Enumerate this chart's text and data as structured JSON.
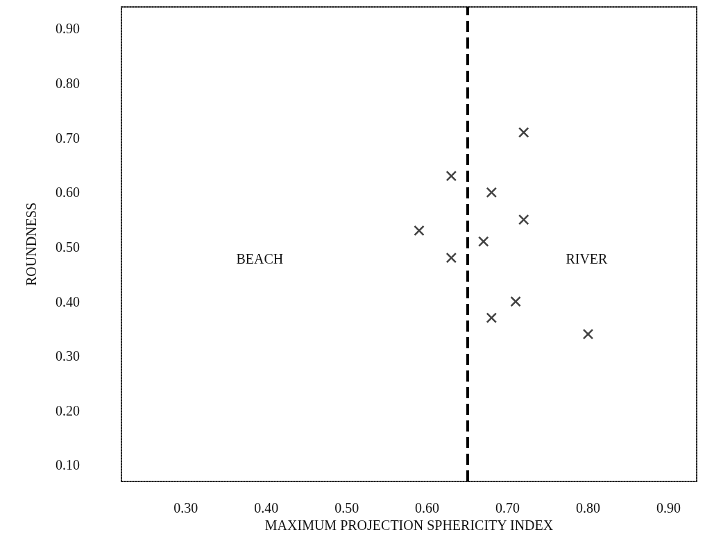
{
  "chart_data": {
    "type": "scatter",
    "xlabel": "MAXIMUM PROJECTION SPHERICITY INDEX",
    "ylabel": "ROUNDNESS",
    "x": [
      0.72,
      0.63,
      0.68,
      0.59,
      0.72,
      0.67,
      0.63,
      0.71,
      0.68,
      0.8
    ],
    "values": [
      0.71,
      0.63,
      0.6,
      0.53,
      0.55,
      0.51,
      0.48,
      0.4,
      0.37,
      0.34
    ],
    "color": "#111111",
    "marker": "cross",
    "xlim": [
      0.22,
      0.935
    ],
    "xticks": [
      {
        "value": 0.3,
        "label": "0.30"
      },
      {
        "value": 0.4,
        "label": "0.40"
      },
      {
        "value": 0.5,
        "label": "0.50"
      },
      {
        "value": 0.6,
        "label": "0.60"
      },
      {
        "value": 0.7,
        "label": "0.70"
      },
      {
        "value": 0.8,
        "label": "0.80"
      },
      {
        "value": 0.9,
        "label": "0.90"
      }
    ],
    "ylim": [
      0.07,
      0.94
    ],
    "yticks": [
      {
        "value": 0.1,
        "label": "0.10"
      },
      {
        "value": 0.2,
        "label": "0.20"
      },
      {
        "value": 0.3,
        "label": "0.30"
      },
      {
        "value": 0.4,
        "label": "0.40"
      },
      {
        "value": 0.5,
        "label": "0.50"
      },
      {
        "value": 0.6,
        "label": "0.60"
      },
      {
        "value": 0.7,
        "label": "0.70"
      },
      {
        "value": 0.8,
        "label": "0.80"
      },
      {
        "value": 0.9,
        "label": "0.90"
      }
    ],
    "ref_lines": [
      {
        "axis": "x",
        "value": 0.65,
        "color": "#000000",
        "line_style": "dashed"
      }
    ],
    "annotations": [
      "BEACH",
      "RIVER"
    ],
    "grid": false
  }
}
